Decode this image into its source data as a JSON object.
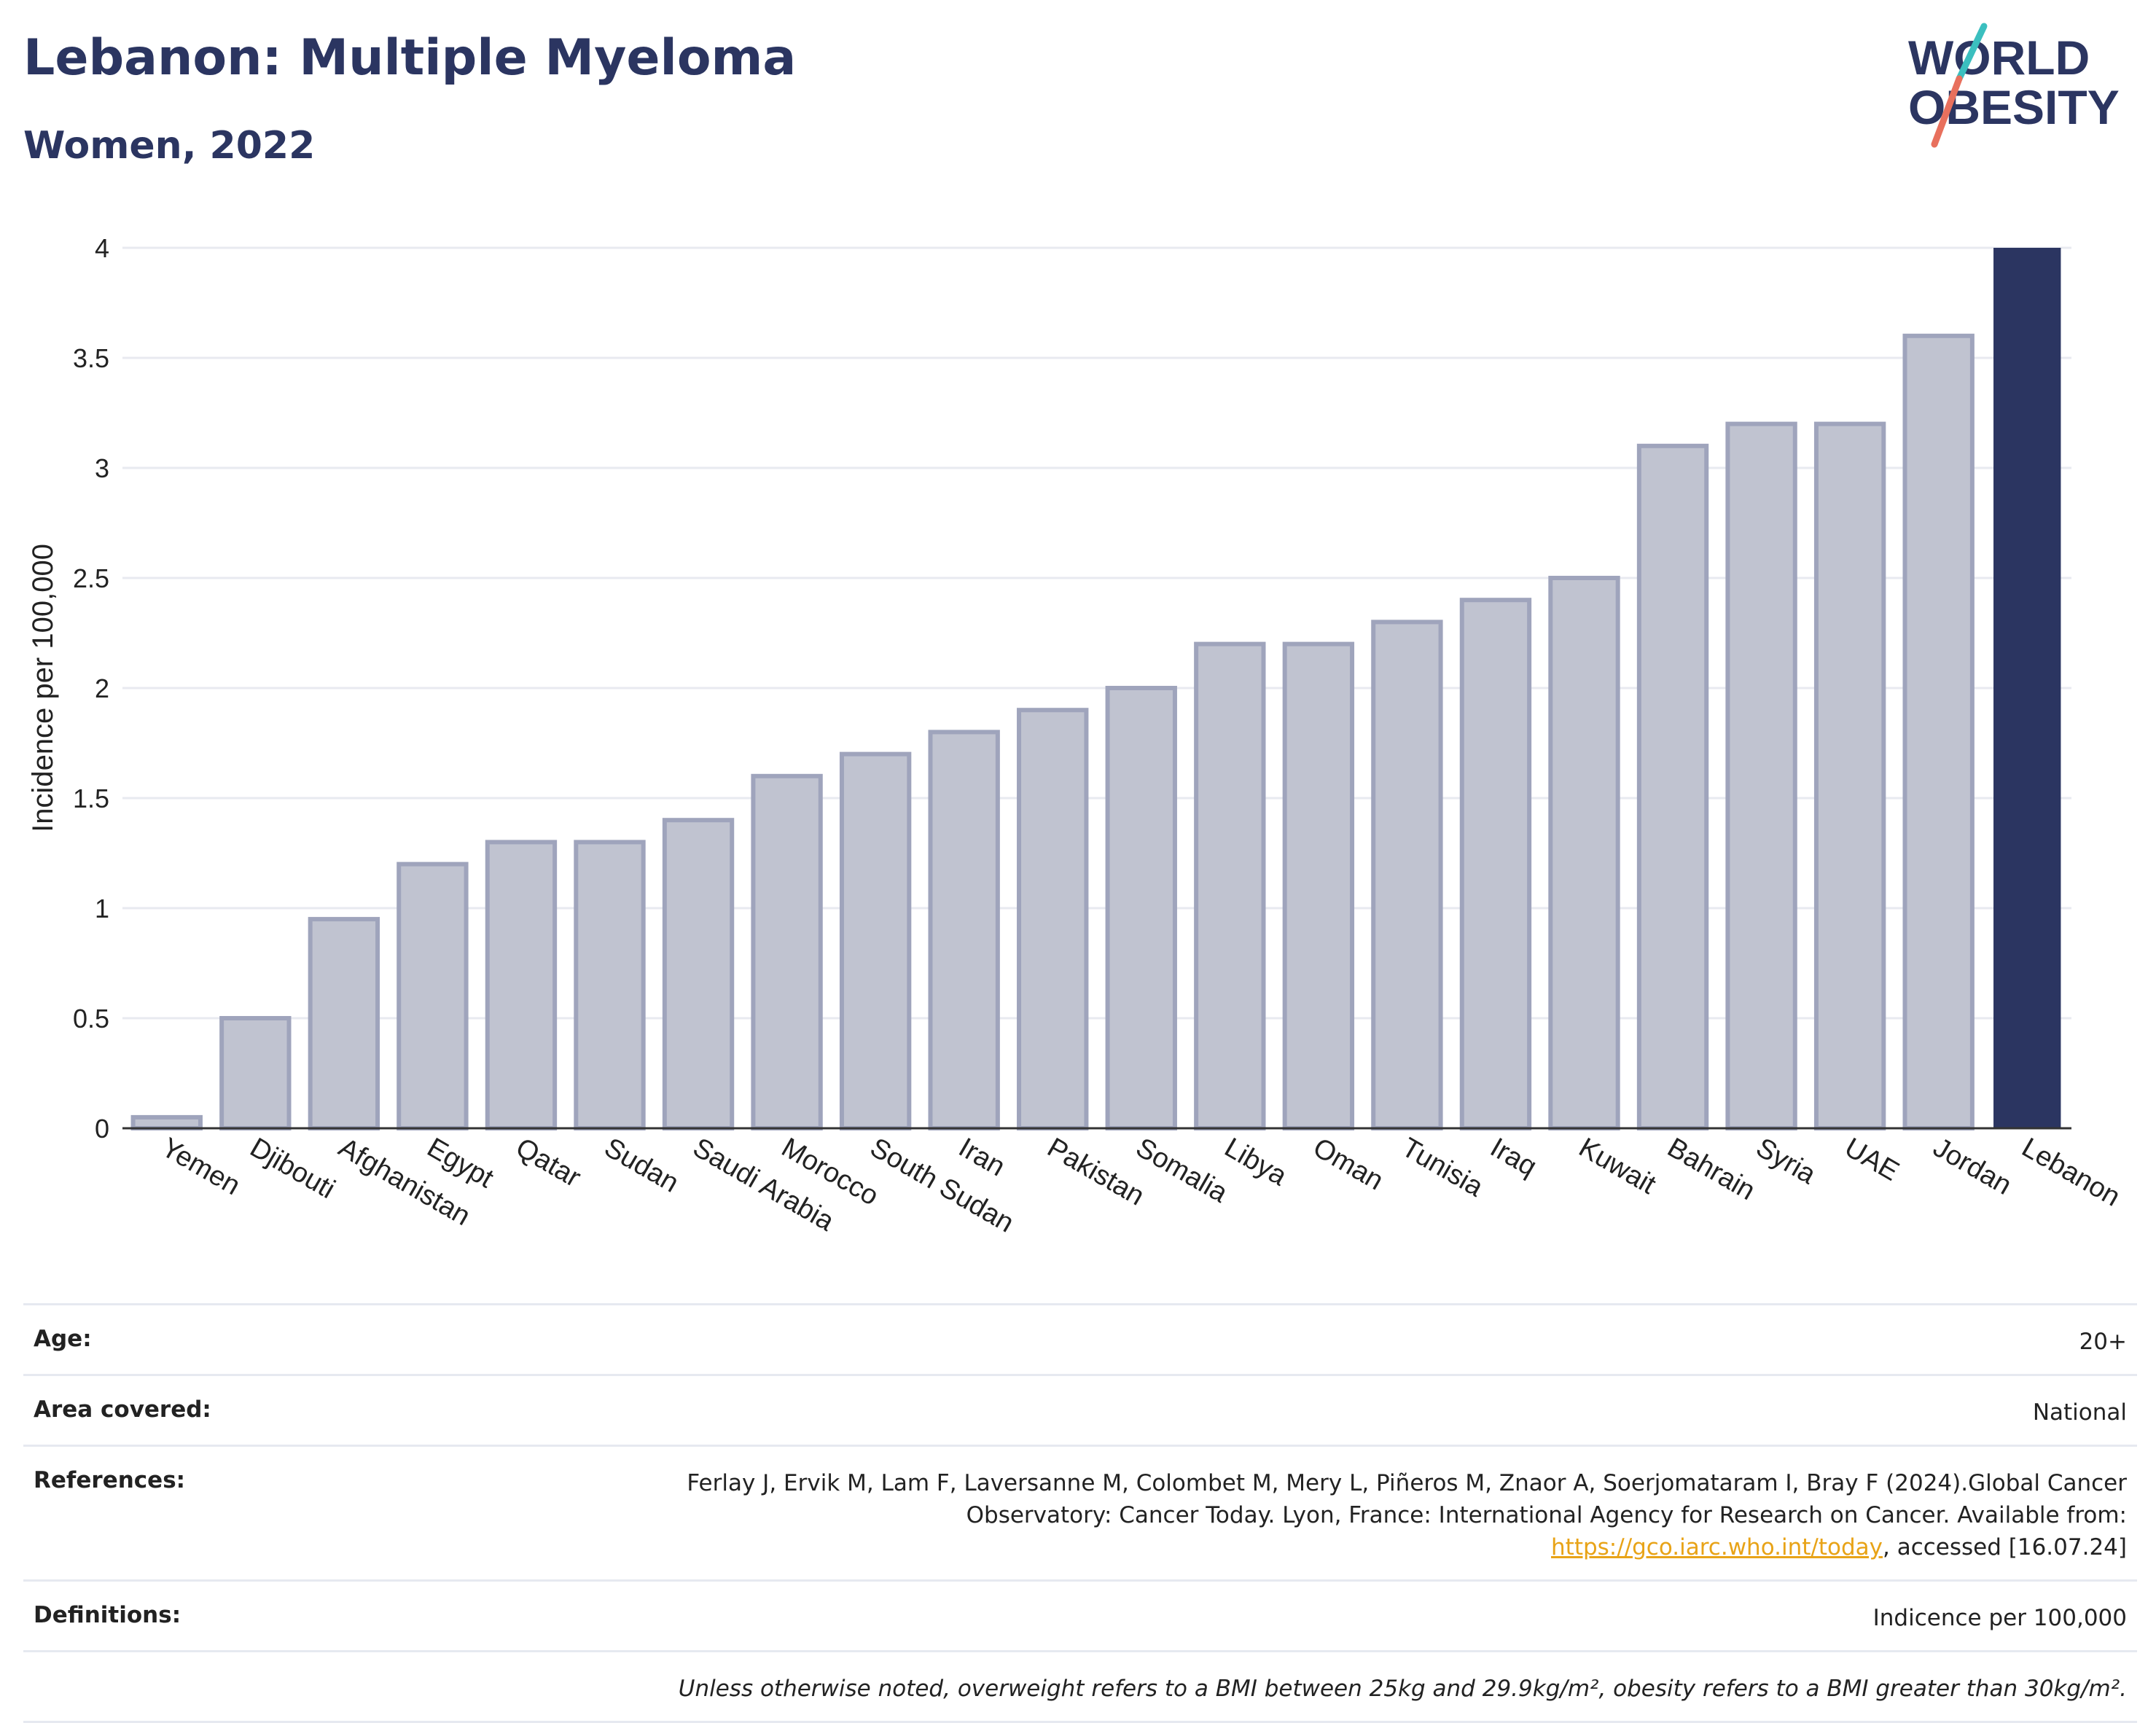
{
  "header": {
    "title": "Lebanon: Multiple Myeloma",
    "subtitle": "Women, 2022"
  },
  "logo": {
    "line1": "WORLD",
    "line2": "OBESITY",
    "colors": {
      "text": "#2b3561",
      "slash_teal": "#3bbfbf",
      "slash_coral": "#e8705d"
    }
  },
  "chart_data": {
    "type": "bar",
    "ylabel": "Incidence per 100,000",
    "ylim": [
      0,
      4
    ],
    "yticks": [
      0,
      0.5,
      1,
      1.5,
      2,
      2.5,
      3,
      3.5,
      4
    ],
    "ytick_labels": [
      "0",
      "0.5",
      "1",
      "1.5",
      "2",
      "2.5",
      "3",
      "3.5",
      "4"
    ],
    "grid": true,
    "categories": [
      "Yemen",
      "Djibouti",
      "Afghanistan",
      "Egypt",
      "Qatar",
      "Sudan",
      "Saudi Arabia",
      "Morocco",
      "South Sudan",
      "Iran",
      "Pakistan",
      "Somalia",
      "Libya",
      "Oman",
      "Tunisia",
      "Iraq",
      "Kuwait",
      "Bahrain",
      "Syria",
      "UAE",
      "Jordan",
      "Lebanon"
    ],
    "values": [
      0.05,
      0.5,
      0.95,
      1.2,
      1.3,
      1.3,
      1.4,
      1.6,
      1.7,
      1.8,
      1.9,
      2.0,
      2.2,
      2.2,
      2.3,
      2.4,
      2.5,
      3.1,
      3.2,
      3.2,
      3.6,
      4.0
    ],
    "highlight": "Lebanon",
    "colors": {
      "default_fill": "#c0c3d0",
      "default_stroke": "#9fa4bc",
      "highlight": "#2b3561",
      "grid": "#e8eaf0",
      "axis": "#333333"
    }
  },
  "info": {
    "age_key": "Age:",
    "age_val": "20+",
    "area_key": "Area covered:",
    "area_val": "National",
    "ref_key": "References:",
    "ref_text1": "Ferlay J, Ervik M, Lam F, Laversanne M, Colombet M, Mery L, Piñeros M, Znaor A, Soerjomataram I, Bray F (2024).Global Cancer Observatory: Cancer Today. Lyon, France: International Agency for Research on Cancer. Available from: ",
    "ref_link": "https://gco.iarc.who.int/today",
    "ref_text2": ", accessed [16.07.24]",
    "def_key": "Definitions:",
    "def_val": "Indicence per 100,000",
    "note": "Unless otherwise noted, overweight refers to a BMI between 25kg and 29.9kg/m², obesity refers to a BMI greater than 30kg/m²."
  }
}
